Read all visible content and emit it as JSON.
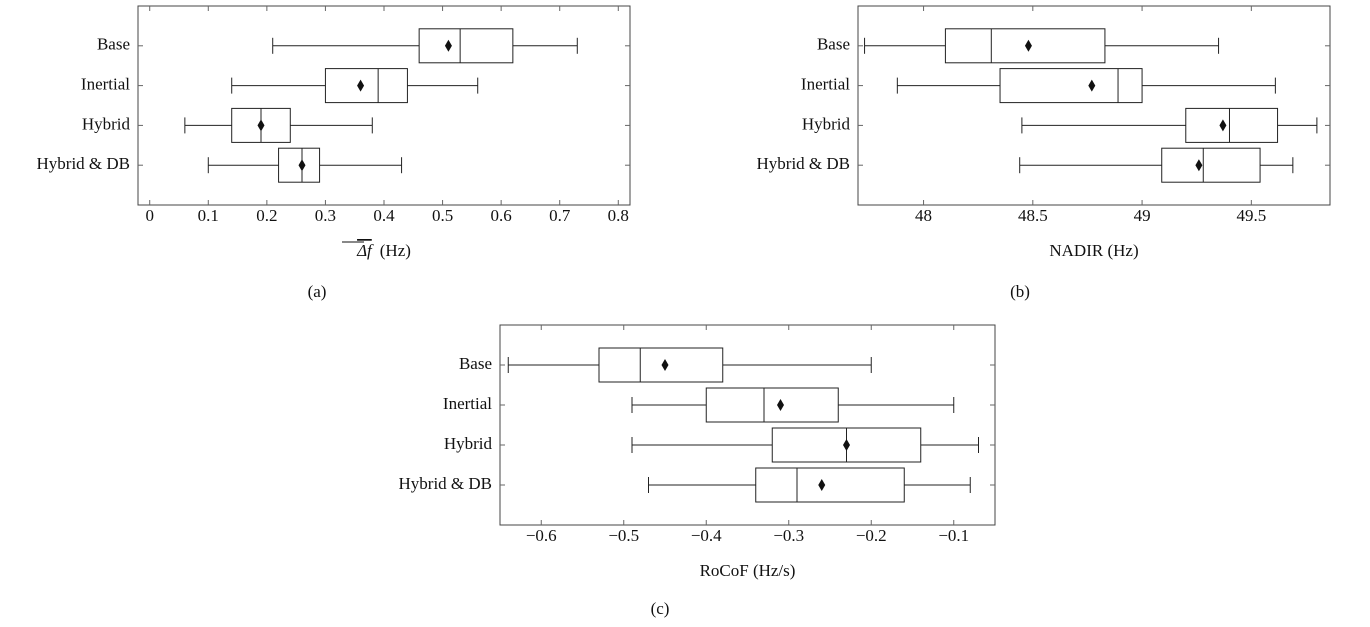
{
  "chart_data": [
    {
      "type": "boxplot",
      "caption": "(a)",
      "xlabel_symbol": "Δf",
      "xlabel_unit": "(Hz)",
      "categories": [
        "Base",
        "Inertial",
        "Hybrid",
        "Hybrid & DB"
      ],
      "min": [
        0.21,
        0.14,
        0.06,
        0.1
      ],
      "q1": [
        0.46,
        0.3,
        0.14,
        0.22
      ],
      "median": [
        0.53,
        0.39,
        0.19,
        0.26
      ],
      "q3": [
        0.62,
        0.44,
        0.24,
        0.29
      ],
      "max": [
        0.73,
        0.56,
        0.38,
        0.43
      ],
      "mean": [
        0.51,
        0.36,
        0.19,
        0.26
      ],
      "xlim": [
        -0.02,
        0.82
      ],
      "xticks": [
        0,
        0.1,
        0.2,
        0.3,
        0.4,
        0.5,
        0.6,
        0.7,
        0.8
      ]
    },
    {
      "type": "boxplot",
      "caption": "(b)",
      "xlabel": "NADIR (Hz)",
      "categories": [
        "Base",
        "Inertial",
        "Hybrid",
        "Hybrid & DB"
      ],
      "min": [
        47.73,
        47.88,
        48.45,
        48.44
      ],
      "q1": [
        48.1,
        48.35,
        49.2,
        49.09
      ],
      "median": [
        48.31,
        48.89,
        49.4,
        49.28
      ],
      "q3": [
        48.83,
        49.0,
        49.62,
        49.54
      ],
      "max": [
        49.35,
        49.61,
        49.8,
        49.69
      ],
      "mean": [
        48.48,
        48.77,
        49.37,
        49.26
      ],
      "xlim": [
        47.7,
        49.86
      ],
      "xticks": [
        48,
        48.5,
        49,
        49.5
      ]
    },
    {
      "type": "boxplot",
      "caption": "(c)",
      "xlabel": "RoCoF (Hz/s)",
      "categories": [
        "Base",
        "Inertial",
        "Hybrid",
        "Hybrid & DB"
      ],
      "min": [
        -0.64,
        -0.49,
        -0.49,
        -0.47
      ],
      "q1": [
        -0.53,
        -0.4,
        -0.32,
        -0.34
      ],
      "median": [
        -0.48,
        -0.33,
        -0.23,
        -0.29
      ],
      "q3": [
        -0.38,
        -0.24,
        -0.14,
        -0.16
      ],
      "max": [
        -0.2,
        -0.1,
        -0.07,
        -0.08
      ],
      "mean": [
        -0.45,
        -0.31,
        -0.23,
        -0.26
      ],
      "xlim": [
        -0.65,
        -0.05
      ],
      "xticks": [
        {
          "value": -0.6,
          "label": "−0.6"
        },
        {
          "value": -0.5,
          "label": "−0.5"
        },
        {
          "value": -0.4,
          "label": "−0.4"
        },
        {
          "value": -0.3,
          "label": "−0.3"
        },
        {
          "value": -0.2,
          "label": "−0.2"
        },
        {
          "value": -0.1,
          "label": "−0.1"
        }
      ]
    }
  ]
}
